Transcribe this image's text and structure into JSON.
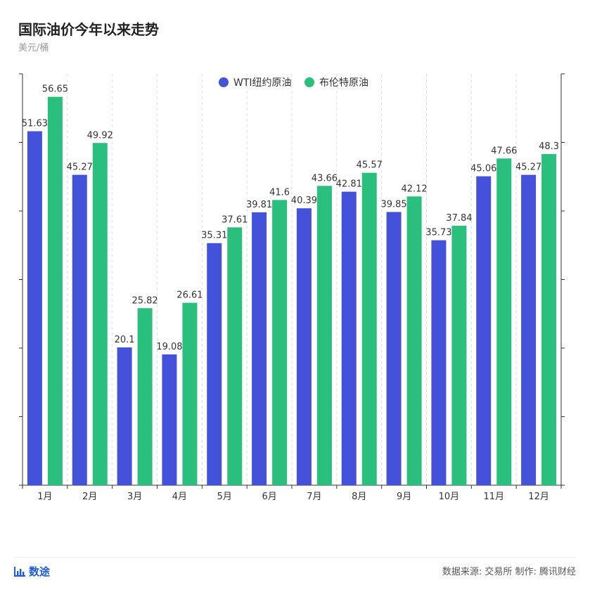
{
  "header": {
    "title": "国际油价今年以来走势",
    "unit": "美元/桶"
  },
  "watermark_text": "腾讯财经",
  "footer": {
    "brand": "数途",
    "source": "数据来源: 交易所 制作: 腾讯财经"
  },
  "colors": {
    "wti": "#4352d9",
    "brent": "#2bbf7e"
  },
  "chart_data": {
    "type": "bar",
    "title": "国际油价今年以来走势",
    "ylabel": "美元/桶",
    "ylim": [
      0,
      60
    ],
    "legend_position": "top-center",
    "categories": [
      "1月",
      "2月",
      "3月",
      "4月",
      "5月",
      "6月",
      "7月",
      "8月",
      "9月",
      "10月",
      "11月",
      "12月"
    ],
    "series": [
      {
        "name": "WTI纽约原油",
        "values": [
          51.63,
          45.27,
          20.1,
          19.08,
          35.31,
          39.81,
          40.39,
          42.81,
          39.85,
          35.73,
          45.06,
          45.27
        ]
      },
      {
        "name": "布伦特原油",
        "values": [
          56.65,
          49.92,
          25.82,
          26.61,
          37.61,
          41.6,
          43.66,
          45.57,
          42.12,
          37.84,
          47.66,
          48.3
        ]
      }
    ]
  }
}
